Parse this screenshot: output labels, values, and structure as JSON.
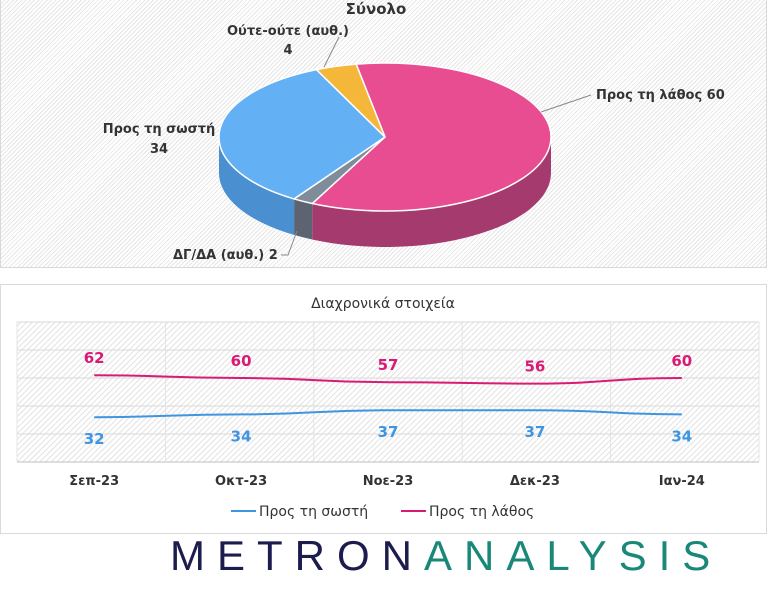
{
  "chart_data": [
    {
      "type": "pie",
      "title": "Σύνολο",
      "slices": [
        {
          "label": "Προς τη λάθος",
          "value": 60,
          "color": "#e84d92",
          "side": "#a43a6e"
        },
        {
          "label": "ΔΓ/ΔΑ (αυθ.)",
          "value": 2,
          "color": "#7f8c99",
          "side": "#5b6470"
        },
        {
          "label": "Προς τη σωστή",
          "value": 34,
          "color": "#63b0f5",
          "side": "#4a8fd0"
        },
        {
          "label": "Ούτε-ούτε (αυθ.)",
          "value": 4,
          "color": "#f5b73a",
          "side": "#d0922a"
        }
      ],
      "data_labels": {
        "wrong": "Προς τη λάθος 60",
        "right_line1": "Προς τη σωστή",
        "right_line2": "34",
        "neither_line1": "Ούτε-ούτε (αυθ.)",
        "neither_line2": "4",
        "dkda": "ΔΓ/ΔΑ (αυθ.) 2"
      }
    },
    {
      "type": "line",
      "title": "Διαχρονικά στοιχεία",
      "categories": [
        "Σεπ-23",
        "Οκτ-23",
        "Νοε-23",
        "Δεκ-23",
        "Ιαν-24"
      ],
      "series": [
        {
          "name": "Προς τη σωστή",
          "values": [
            32,
            34,
            37,
            37,
            34
          ],
          "color": "#3f95e0"
        },
        {
          "name": "Προς τη λάθος",
          "values": [
            62,
            60,
            57,
            56,
            60
          ],
          "color": "#d81b74"
        }
      ],
      "ylim": [
        0,
        100
      ],
      "grid": true,
      "legend": "bottom"
    }
  ],
  "logo": {
    "part1": "METRON",
    "part2": "ANALYSIS"
  }
}
